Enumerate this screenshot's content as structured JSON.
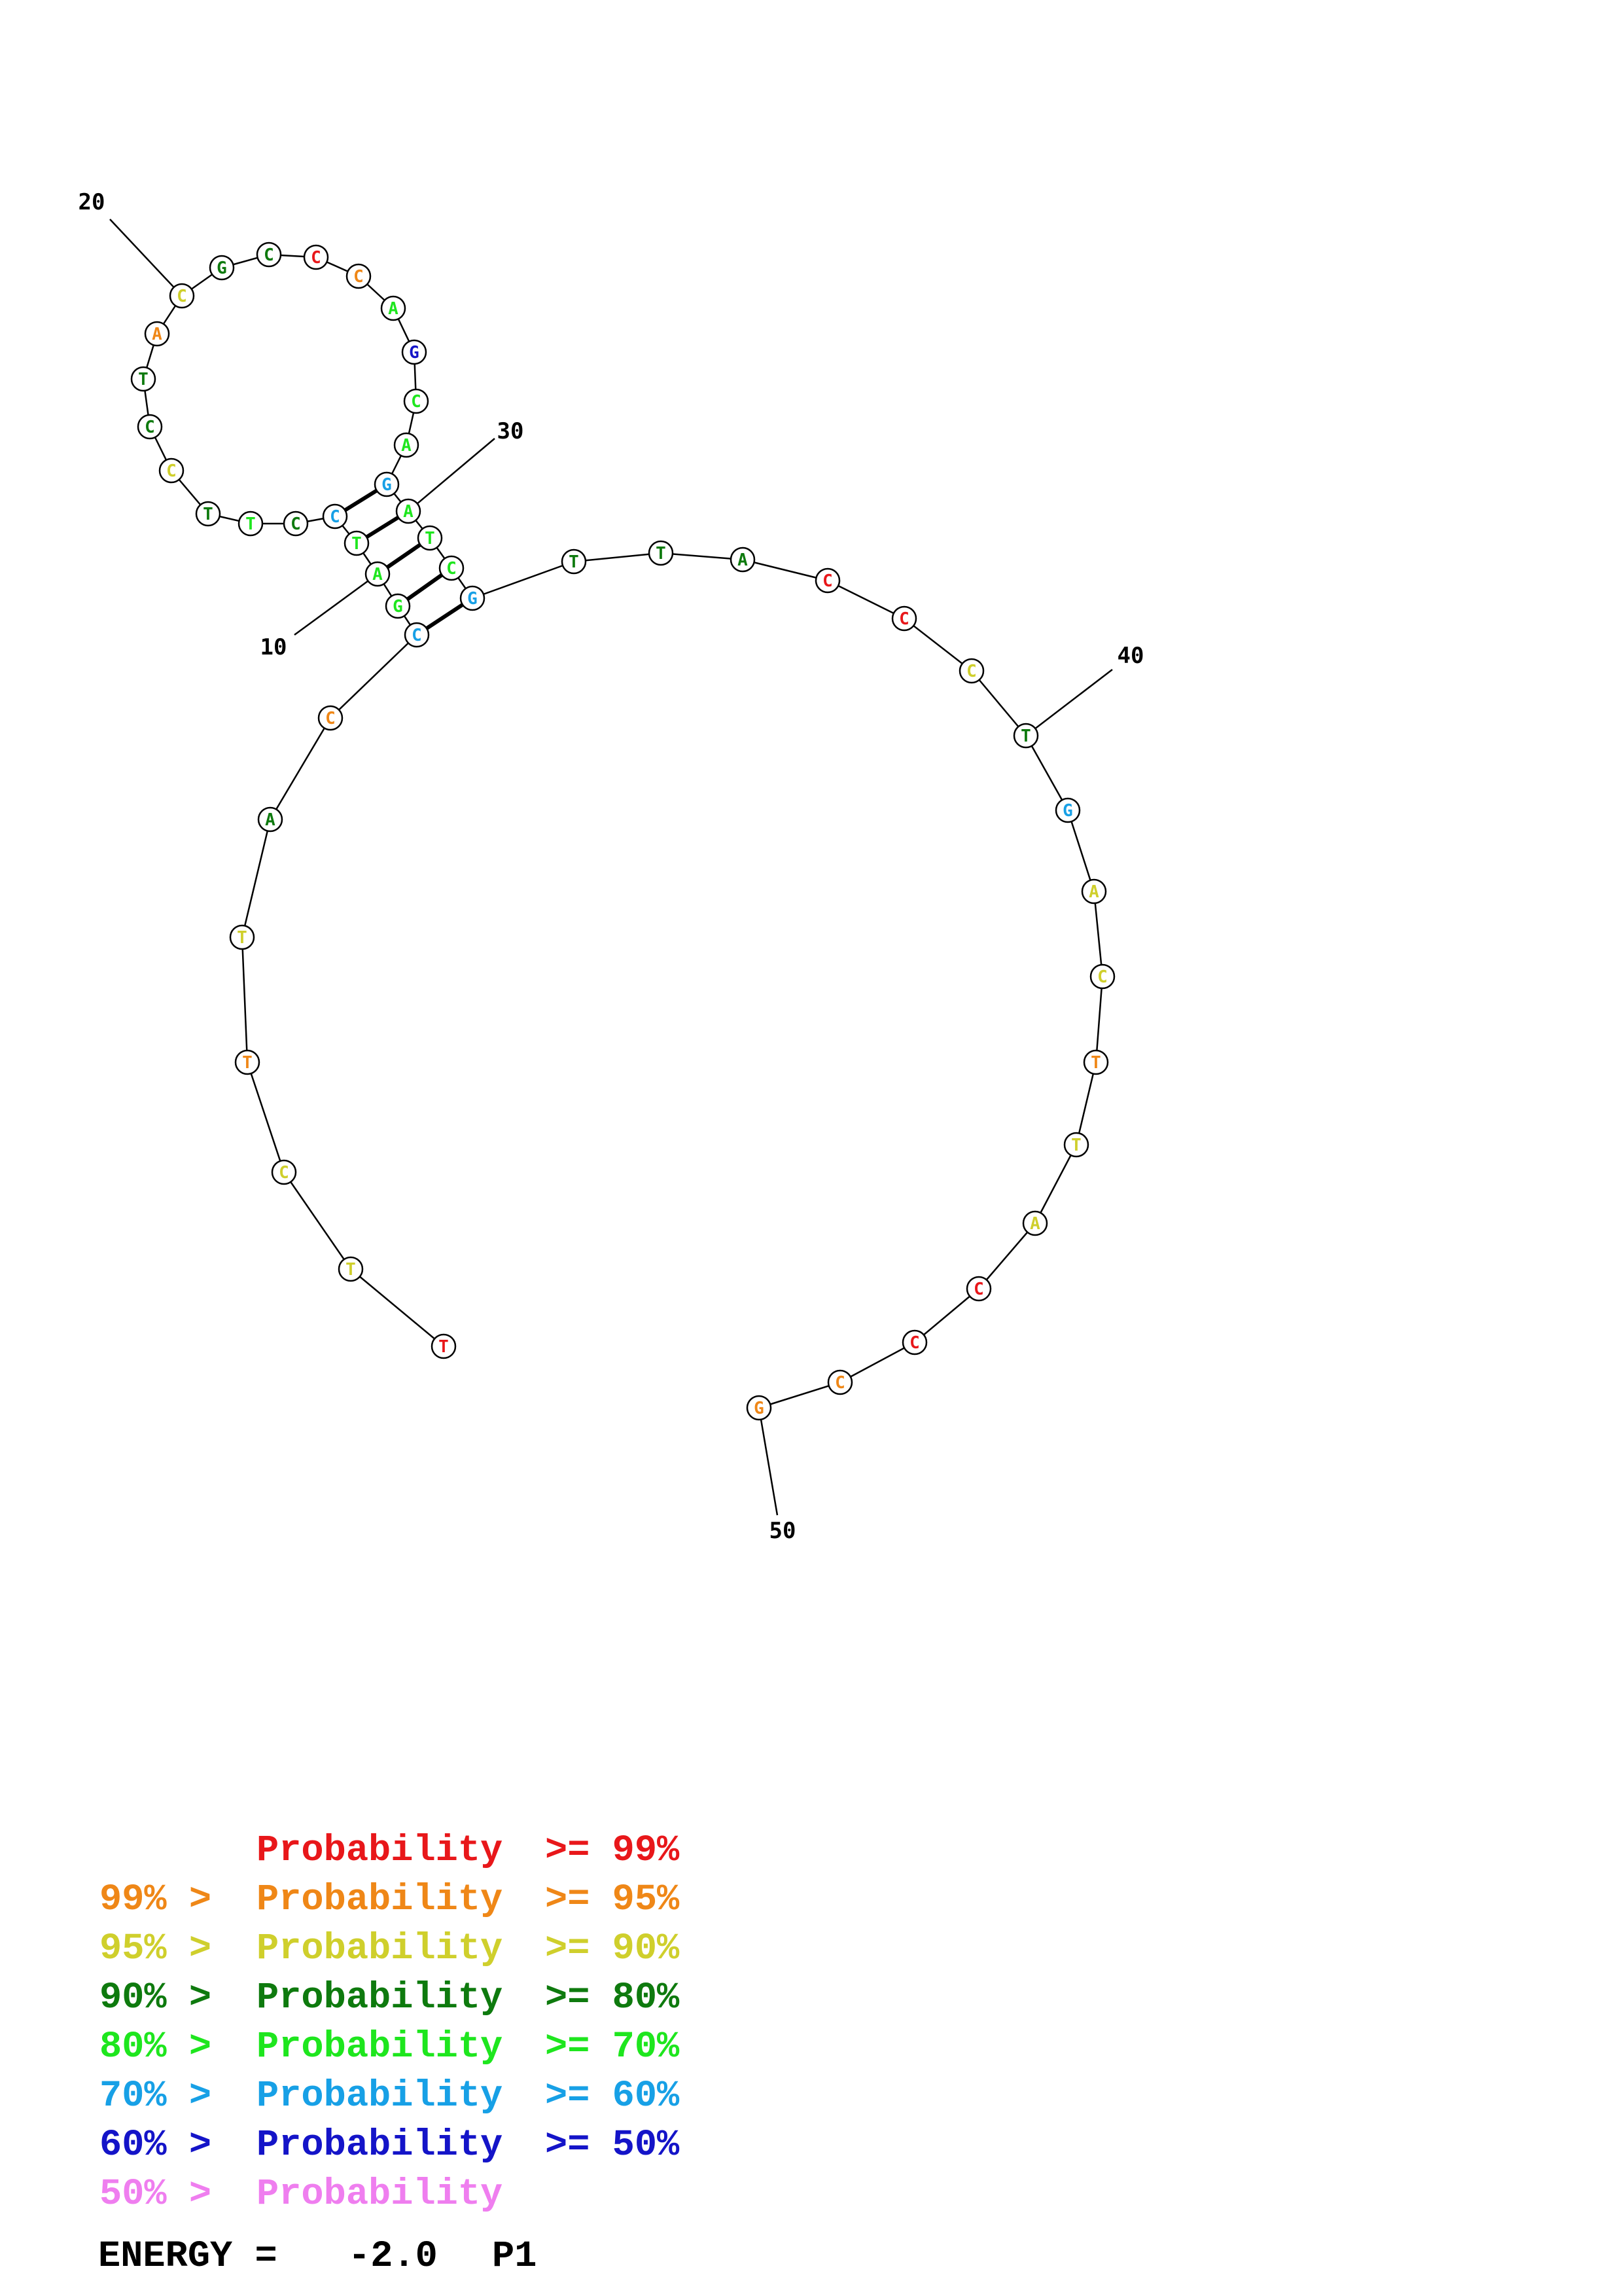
{
  "colors": {
    "p99": "#e8171a",
    "p95": "#ef8717",
    "p90": "#cfcf2c",
    "p80": "#0e7a0e",
    "p70": "#1ee61e",
    "p60": "#17a0e6",
    "p50": "#1414c8",
    "p0": "#ef7eef"
  },
  "nucleotides": [
    {
      "base": "T",
      "cls": "p99"
    },
    {
      "base": "T",
      "cls": "p90"
    },
    {
      "base": "C",
      "cls": "p90"
    },
    {
      "base": "T",
      "cls": "p95"
    },
    {
      "base": "T",
      "cls": "p90"
    },
    {
      "base": "A",
      "cls": "p80"
    },
    {
      "base": "C",
      "cls": "p95"
    },
    {
      "base": "C",
      "cls": "p60"
    },
    {
      "base": "G",
      "cls": "p70"
    },
    {
      "base": "A",
      "cls": "p70"
    },
    {
      "base": "T",
      "cls": "p70"
    },
    {
      "base": "C",
      "cls": "p60"
    },
    {
      "base": "C",
      "cls": "p80"
    },
    {
      "base": "T",
      "cls": "p70"
    },
    {
      "base": "T",
      "cls": "p80"
    },
    {
      "base": "C",
      "cls": "p90"
    },
    {
      "base": "C",
      "cls": "p80"
    },
    {
      "base": "T",
      "cls": "p80"
    },
    {
      "base": "A",
      "cls": "p95"
    },
    {
      "base": "C",
      "cls": "p90"
    },
    {
      "base": "G",
      "cls": "p80"
    },
    {
      "base": "C",
      "cls": "p80"
    },
    {
      "base": "C",
      "cls": "p99"
    },
    {
      "base": "C",
      "cls": "p95"
    },
    {
      "base": "A",
      "cls": "p70"
    },
    {
      "base": "G",
      "cls": "p50"
    },
    {
      "base": "C",
      "cls": "p70"
    },
    {
      "base": "A",
      "cls": "p70"
    },
    {
      "base": "G",
      "cls": "p60"
    },
    {
      "base": "A",
      "cls": "p70"
    },
    {
      "base": "T",
      "cls": "p70"
    },
    {
      "base": "C",
      "cls": "p70"
    },
    {
      "base": "G",
      "cls": "p60"
    },
    {
      "base": "T",
      "cls": "p80"
    },
    {
      "base": "T",
      "cls": "p80"
    },
    {
      "base": "A",
      "cls": "p80"
    },
    {
      "base": "C",
      "cls": "p99"
    },
    {
      "base": "C",
      "cls": "p99"
    },
    {
      "base": "C",
      "cls": "p90"
    },
    {
      "base": "T",
      "cls": "p80"
    },
    {
      "base": "G",
      "cls": "p60"
    },
    {
      "base": "A",
      "cls": "p90"
    },
    {
      "base": "C",
      "cls": "p90"
    },
    {
      "base": "T",
      "cls": "p95"
    },
    {
      "base": "T",
      "cls": "p90"
    },
    {
      "base": "A",
      "cls": "p90"
    },
    {
      "base": "C",
      "cls": "p99"
    },
    {
      "base": "C",
      "cls": "p99"
    },
    {
      "base": "C",
      "cls": "p95"
    },
    {
      "base": "G",
      "cls": "p95"
    }
  ],
  "pairs": [
    [
      8,
      33
    ],
    [
      9,
      32
    ],
    [
      10,
      31
    ],
    [
      11,
      30
    ],
    [
      12,
      29
    ]
  ],
  "position_labels": [
    {
      "index": 10,
      "text": "10"
    },
    {
      "index": 20,
      "text": "20"
    },
    {
      "index": 30,
      "text": "30"
    },
    {
      "index": 40,
      "text": "40"
    },
    {
      "index": 50,
      "text": "50"
    }
  ],
  "legend": [
    {
      "prefix": "",
      "label": "Probability",
      "suffix": ">= 99%",
      "cls": "p99"
    },
    {
      "prefix": "99% >",
      "label": "Probability",
      "suffix": ">= 95%",
      "cls": "p95"
    },
    {
      "prefix": "95% >",
      "label": "Probability",
      "suffix": ">= 90%",
      "cls": "p90"
    },
    {
      "prefix": "90% >",
      "label": "Probability",
      "suffix": ">= 80%",
      "cls": "p80"
    },
    {
      "prefix": "80% >",
      "label": "Probability",
      "suffix": ">= 70%",
      "cls": "p70"
    },
    {
      "prefix": "70% >",
      "label": "Probability",
      "suffix": ">= 60%",
      "cls": "p60"
    },
    {
      "prefix": "60% >",
      "label": "Probability",
      "suffix": ">= 50%",
      "cls": "p50"
    },
    {
      "prefix": "50% >",
      "label": "Probability",
      "suffix": "",
      "cls": "p0"
    }
  ],
  "energy": {
    "label": "ENERGY =",
    "value": "-2.0",
    "structure": "P1"
  }
}
